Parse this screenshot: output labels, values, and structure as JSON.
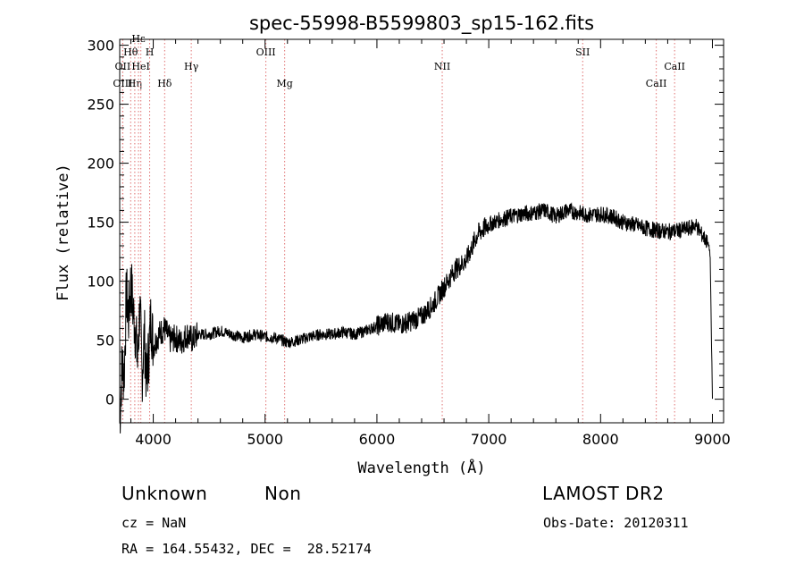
{
  "chart_data": {
    "type": "line",
    "title": "spec-55998-B5599803_sp15-162.fits",
    "xlabel": "Wavelength (Å)",
    "ylabel": "Flux (relative)",
    "xlim": [
      3700,
      9100
    ],
    "ylim": [
      -20,
      305
    ],
    "xticks": [
      4000,
      5000,
      6000,
      7000,
      8000,
      9000
    ],
    "yticks": [
      0,
      50,
      100,
      150,
      200,
      250,
      300
    ],
    "grid": false,
    "series": [
      {
        "x": [
          3700,
          3720,
          3740,
          3760,
          3780,
          3800,
          3820,
          3840,
          3860,
          3880,
          3900,
          3920,
          3940,
          3960,
          3980,
          4000,
          4050,
          4100,
          4150,
          4200,
          4250,
          4300,
          4350,
          4400,
          4500,
          4600,
          4700,
          4800,
          4900,
          5000,
          5100,
          5200,
          5300,
          5400,
          5500,
          5600,
          5700,
          5800,
          5900,
          6000,
          6100,
          6200,
          6300,
          6400,
          6500,
          6600,
          6700,
          6800,
          6900,
          7000,
          7100,
          7200,
          7300,
          7400,
          7500,
          7600,
          7700,
          7800,
          7900,
          8000,
          8100,
          8200,
          8300,
          8400,
          8500,
          8600,
          8700,
          8800,
          8850,
          8900,
          8940,
          8970,
          8980,
          8990,
          9000
        ],
        "values": [
          -20,
          30,
          20,
          90,
          70,
          100,
          75,
          60,
          30,
          80,
          20,
          55,
          15,
          40,
          70,
          45,
          55,
          60,
          50,
          52,
          48,
          55,
          50,
          55,
          55,
          58,
          55,
          52,
          55,
          53,
          52,
          48,
          50,
          53,
          55,
          55,
          57,
          55,
          58,
          62,
          66,
          63,
          66,
          70,
          80,
          95,
          110,
          118,
          140,
          148,
          152,
          155,
          157,
          158,
          160,
          155,
          160,
          158,
          156,
          157,
          155,
          150,
          148,
          145,
          143,
          142,
          143,
          145,
          148,
          140,
          135,
          130,
          120,
          60,
          0
        ]
      }
    ],
    "annotations": [
      {
        "label": "Hθ",
        "x": 3798,
        "row": 1
      },
      {
        "label": "OII",
        "x": 3727,
        "row": 2
      },
      {
        "label": "OIII",
        "x": 3727,
        "row": 3
      },
      {
        "label": "Hη",
        "x": 3835,
        "row": 3
      },
      {
        "label": "Hε",
        "x": 3868,
        "row": 0
      },
      {
        "label": "HeI",
        "x": 3889,
        "row": 2
      },
      {
        "label": "H",
        "x": 3968,
        "row": 1
      },
      {
        "label": "Hδ",
        "x": 4102,
        "row": 3
      },
      {
        "label": "Hγ",
        "x": 4340,
        "row": 2
      },
      {
        "label": "OIII",
        "x": 5007,
        "row": 1
      },
      {
        "label": "Mg",
        "x": 5175,
        "row": 3
      },
      {
        "label": "NII",
        "x": 6584,
        "row": 2
      },
      {
        "label": "SII",
        "x": 7840,
        "row": 1
      },
      {
        "label": "CaII",
        "x": 8498,
        "row": 3
      },
      {
        "label": "CaII",
        "x": 8662,
        "row": 2
      }
    ]
  },
  "info": {
    "class": "Unknown",
    "subclass": "Non",
    "survey": "LAMOST DR2",
    "cz": "cz = NaN",
    "obs_date": "Obs-Date: 20120311",
    "coords": "RA = 164.55432, DEC =  28.52174"
  }
}
